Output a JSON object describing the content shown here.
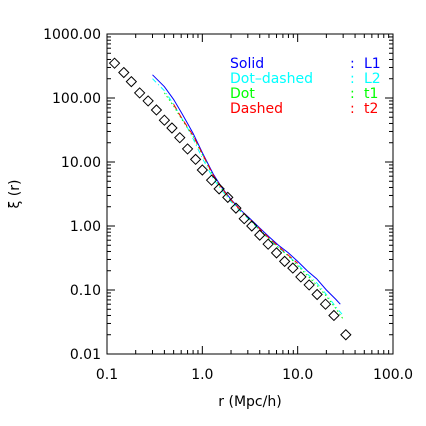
{
  "chart_data": {
    "type": "line",
    "xlabel": "r (Mpc/h)",
    "ylabel": "ξ (r)",
    "x_scale": "log",
    "y_scale": "log",
    "xlim": [
      0.1,
      100
    ],
    "ylim": [
      0.01,
      1000
    ],
    "x_ticks": [
      0.1,
      1,
      10,
      100
    ],
    "x_tick_labels": [
      "0.1",
      "1.0",
      "10.0",
      "100.0"
    ],
    "y_ticks": [
      0.01,
      0.1,
      1,
      10,
      100,
      1000
    ],
    "y_tick_labels": [
      "0.01",
      "0.10",
      "1.00",
      "10.00",
      "100.00",
      "1000.00"
    ],
    "grid": false,
    "legend_position": "top-right",
    "legend": [
      {
        "style": "Solid",
        "name": "L1",
        "color": "#0000ff"
      },
      {
        "style": "Dot–dashed",
        "name": "L2",
        "color": "#00ffff"
      },
      {
        "style": "Dot",
        "name": "t1",
        "color": "#00ff00"
      },
      {
        "style": "Dashed",
        "name": "t2",
        "color": "#ff0000"
      }
    ],
    "legend_separator": ":",
    "series": [
      {
        "name": "L1",
        "color": "#0000ff",
        "dash": "solid",
        "x": [
          0.3,
          0.4,
          0.5,
          0.6,
          0.7,
          0.8,
          1.0,
          1.3,
          1.6,
          2.0,
          2.5,
          3.2,
          4.0,
          5.0,
          6.3,
          8.0,
          10.0,
          12.6,
          15.8,
          20.0,
          25.0,
          28.0
        ],
        "y": [
          230,
          150,
          95,
          60,
          40,
          28,
          14,
          6.5,
          4.0,
          2.6,
          1.8,
          1.28,
          0.93,
          0.68,
          0.5,
          0.38,
          0.28,
          0.2,
          0.15,
          0.1,
          0.072,
          0.06
        ]
      },
      {
        "name": "L2",
        "color": "#00ffff",
        "dash": "dot-dash",
        "x": [
          0.3,
          0.4,
          0.5,
          0.6,
          0.7,
          0.8,
          1.0,
          1.3,
          1.6,
          2.0,
          2.5,
          3.2,
          4.0,
          5.0,
          6.3,
          8.0,
          10.0,
          12.6,
          15.8,
          20.0,
          25.0,
          30.0
        ],
        "y": [
          200,
          130,
          80,
          50,
          34,
          23,
          11.5,
          5.5,
          3.6,
          2.4,
          1.7,
          1.2,
          0.86,
          0.62,
          0.46,
          0.34,
          0.25,
          0.18,
          0.13,
          0.085,
          0.055,
          0.04
        ]
      },
      {
        "name": "t1",
        "color": "#00ff00",
        "dash": "dot",
        "x": [
          0.4,
          0.5,
          0.6,
          0.8,
          1.0,
          1.3,
          1.6,
          2.0,
          2.5,
          3.2,
          4.0,
          5.0,
          6.3,
          8.0,
          10.0,
          12.6,
          15.8,
          20.0,
          25.0,
          30.0
        ],
        "y": [
          120,
          75,
          48,
          25,
          13,
          6.0,
          3.8,
          2.5,
          1.75,
          1.22,
          0.88,
          0.63,
          0.46,
          0.34,
          0.24,
          0.17,
          0.12,
          0.08,
          0.052,
          0.035
        ]
      },
      {
        "name": "t2",
        "color": "#ff0000",
        "dash": "dash",
        "x": [
          0.5,
          0.6,
          0.8,
          1.0,
          1.3,
          1.6,
          2.0,
          2.5,
          3.2,
          4.0,
          5.0,
          6.3,
          8.0,
          10.0
        ],
        "y": [
          80,
          50,
          26,
          13.5,
          6.2,
          3.9,
          2.55,
          1.78,
          1.25,
          0.9,
          0.65,
          0.48,
          0.35,
          0.26
        ]
      },
      {
        "name": "",
        "color": "#000000",
        "marker": "diamond",
        "x": [
          0.12,
          0.15,
          0.18,
          0.22,
          0.27,
          0.33,
          0.4,
          0.48,
          0.58,
          0.7,
          0.85,
          1.0,
          1.25,
          1.5,
          1.85,
          2.25,
          2.75,
          3.3,
          4.0,
          4.9,
          6.0,
          7.3,
          8.9,
          10.8,
          13.2,
          16.0,
          19.6,
          24.0,
          32.0
        ],
        "y": [
          350,
          250,
          180,
          120,
          90,
          65,
          45,
          34,
          24,
          16,
          11,
          7.5,
          5.2,
          3.8,
          2.8,
          1.9,
          1.3,
          1.0,
          0.72,
          0.52,
          0.38,
          0.28,
          0.22,
          0.16,
          0.12,
          0.085,
          0.06,
          0.04,
          0.02
        ]
      }
    ]
  }
}
